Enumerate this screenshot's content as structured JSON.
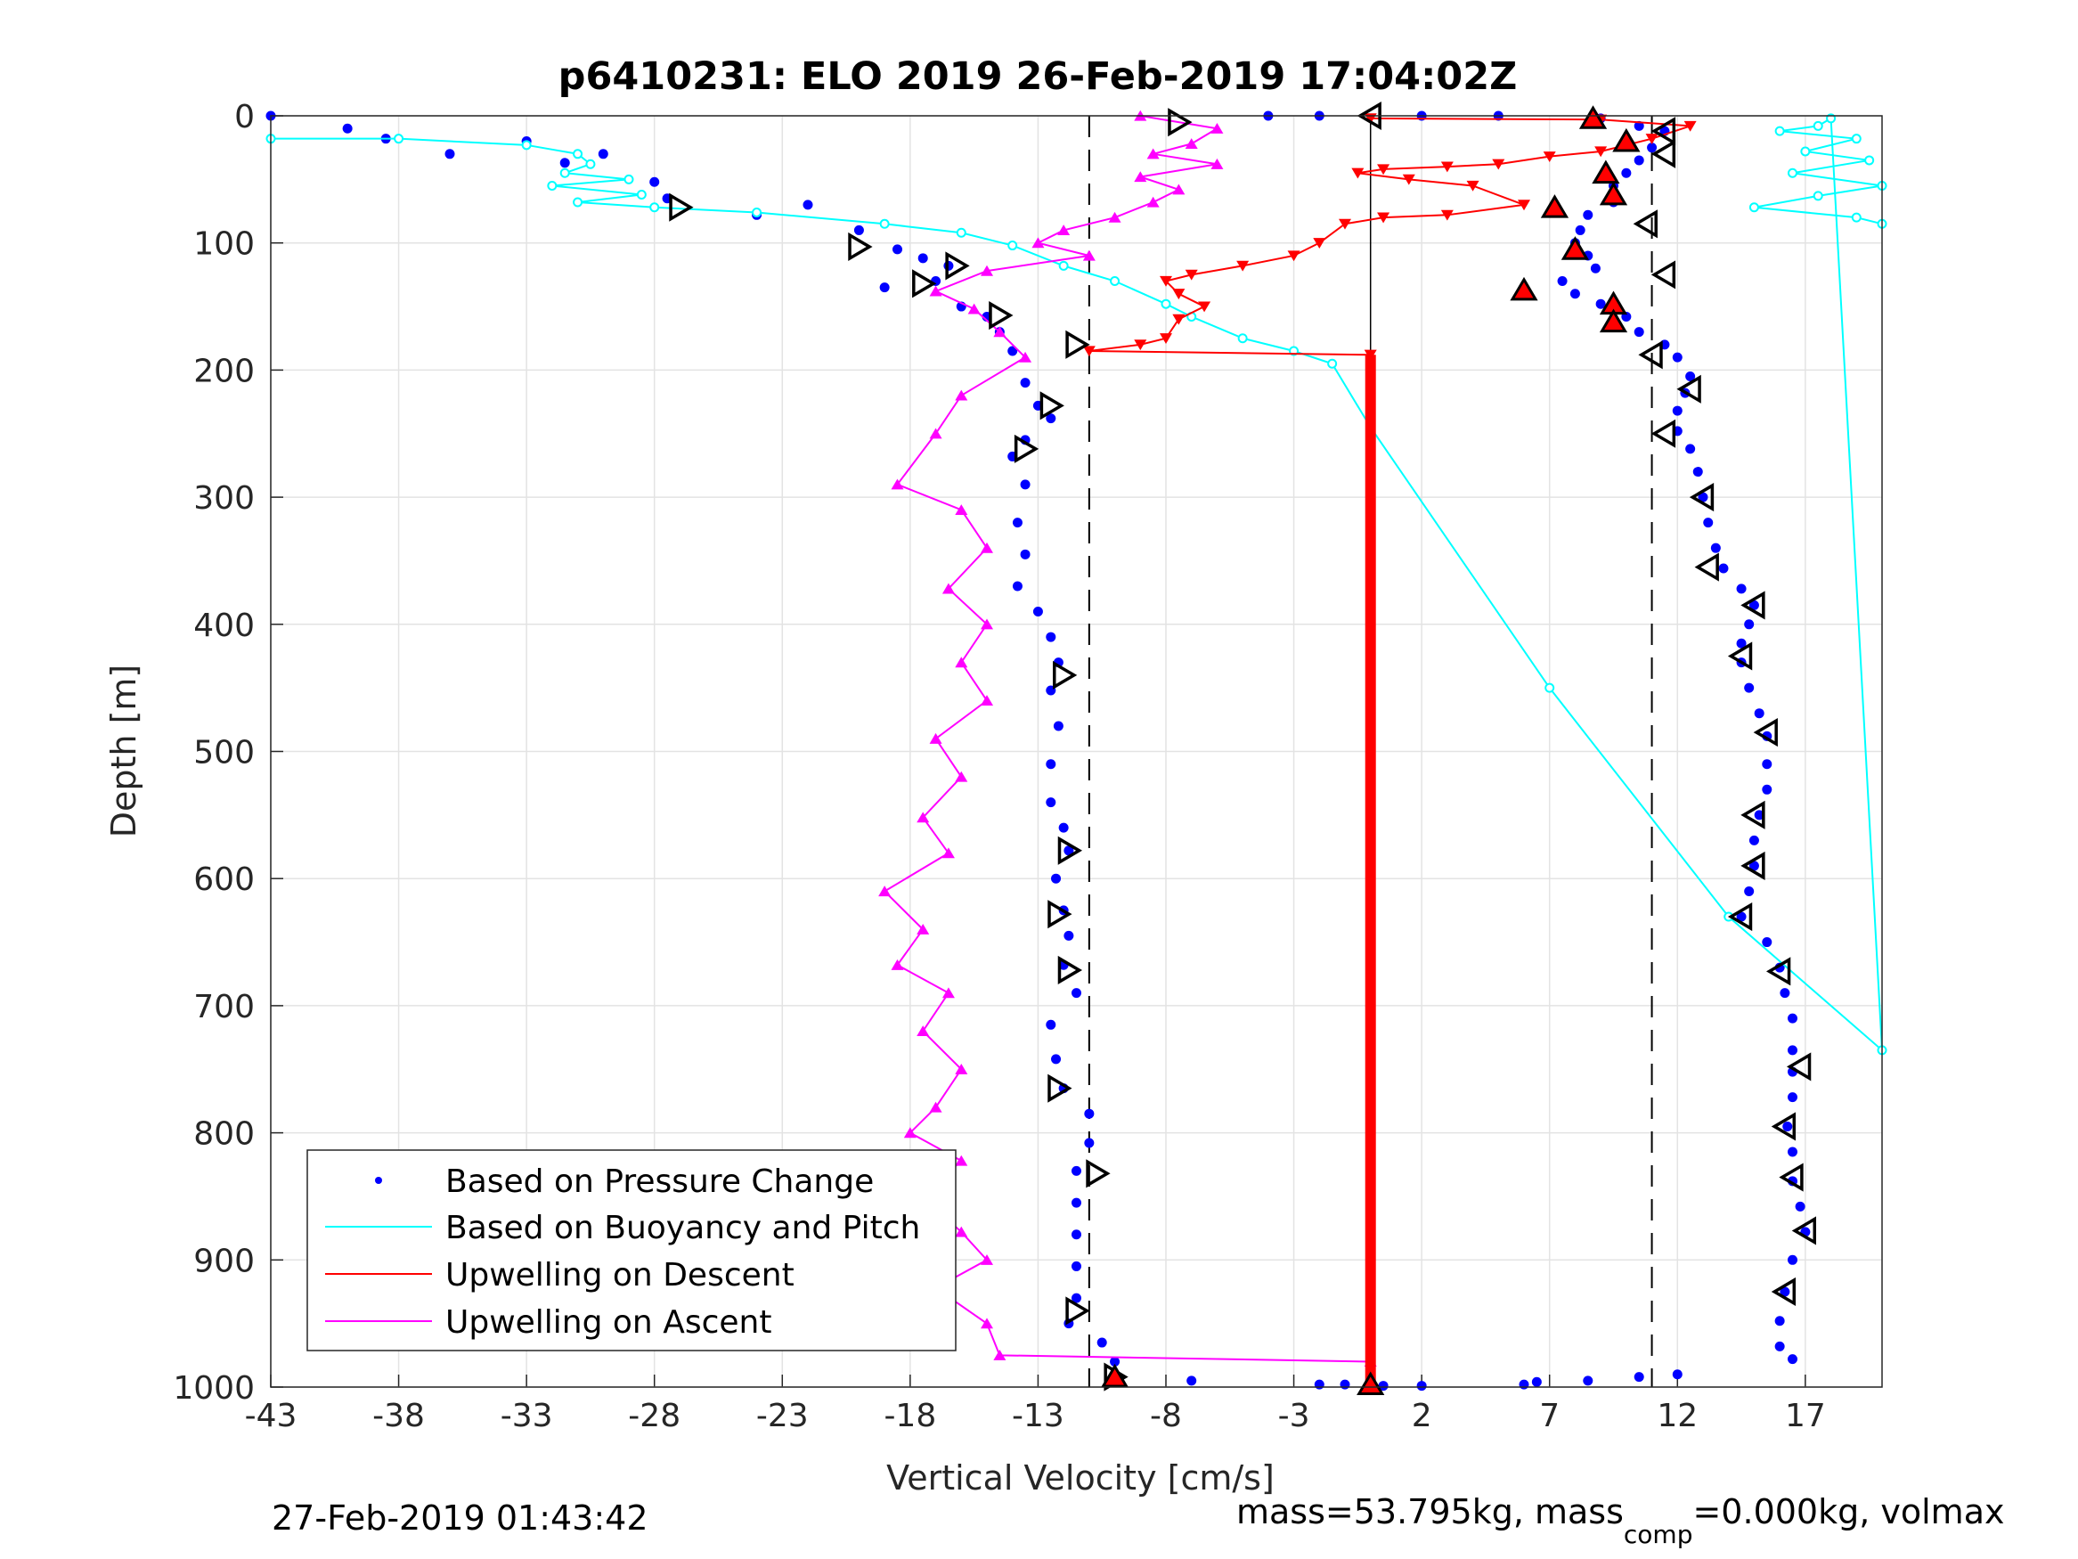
{
  "chart_data": {
    "type": "scatter",
    "title": "p6410231: ELO 2019 26-Feb-2019 17:04:02Z",
    "xlabel": "Vertical Velocity [cm/s]",
    "ylabel": "Depth [m]",
    "xlim": [
      -43,
      20
    ],
    "ylim": [
      0,
      1000
    ],
    "y_reversed": true,
    "xticks": [
      -43,
      -38,
      -33,
      -28,
      -23,
      -18,
      -13,
      -8,
      -3,
      2,
      7,
      12,
      17
    ],
    "yticks": [
      0,
      100,
      200,
      300,
      400,
      500,
      600,
      700,
      800,
      900,
      1000
    ],
    "grid": true,
    "legend_position": "bottom-left",
    "reference_lines": {
      "dashed_x": [
        -11,
        11
      ],
      "solid_x": [
        0
      ]
    },
    "series": [
      {
        "name": "Based on Pressure Change",
        "style": "dots",
        "color": "#0000ff",
        "points": [
          [
            -43,
            0
          ],
          [
            -40,
            10
          ],
          [
            -38.5,
            18
          ],
          [
            -36,
            30
          ],
          [
            -33,
            20
          ],
          [
            -31.5,
            37
          ],
          [
            -30,
            30
          ],
          [
            -28,
            52
          ],
          [
            -27.5,
            65
          ],
          [
            -24,
            78
          ],
          [
            -22,
            70
          ],
          [
            -20,
            90
          ],
          [
            -18.5,
            105
          ],
          [
            -17.5,
            112
          ],
          [
            -19,
            135
          ],
          [
            -17,
            130
          ],
          [
            -16.5,
            118
          ],
          [
            -16,
            150
          ],
          [
            -15,
            158
          ],
          [
            -14.5,
            170
          ],
          [
            -14,
            185
          ],
          [
            -13.5,
            210
          ],
          [
            -13,
            228
          ],
          [
            -12.5,
            238
          ],
          [
            -13.5,
            255
          ],
          [
            -14,
            268
          ],
          [
            -13.5,
            290
          ],
          [
            -13.8,
            320
          ],
          [
            -13.5,
            345
          ],
          [
            -13.8,
            370
          ],
          [
            -13,
            390
          ],
          [
            -12.5,
            410
          ],
          [
            -12.2,
            430
          ],
          [
            -12.5,
            452
          ],
          [
            -12.2,
            480
          ],
          [
            -12.5,
            510
          ],
          [
            -12.5,
            540
          ],
          [
            -12,
            560
          ],
          [
            -11.8,
            578
          ],
          [
            -12.3,
            600
          ],
          [
            -12,
            625
          ],
          [
            -11.8,
            645
          ],
          [
            -12,
            668
          ],
          [
            -11.5,
            690
          ],
          [
            -12.5,
            715
          ],
          [
            -12.3,
            742
          ],
          [
            -12,
            765
          ],
          [
            -11,
            785
          ],
          [
            -11,
            808
          ],
          [
            -11.5,
            830
          ],
          [
            -11.5,
            855
          ],
          [
            -11.5,
            880
          ],
          [
            -11.5,
            905
          ],
          [
            -11.5,
            930
          ],
          [
            -11.8,
            950
          ],
          [
            -10.5,
            965
          ],
          [
            -10,
            980
          ],
          [
            -10,
            992
          ],
          [
            -7,
            995
          ],
          [
            -2,
            998
          ],
          [
            -1,
            998
          ],
          [
            0.5,
            999
          ],
          [
            2,
            999
          ],
          [
            6,
            998
          ],
          [
            6.5,
            996
          ],
          [
            8.5,
            995
          ],
          [
            10.5,
            992
          ],
          [
            12,
            990
          ],
          [
            -4,
            0
          ],
          [
            -2,
            0
          ],
          [
            2,
            0
          ],
          [
            5,
            0
          ],
          [
            9,
            2
          ],
          [
            10.5,
            8
          ],
          [
            11.5,
            12
          ],
          [
            11,
            25
          ],
          [
            10.5,
            35
          ],
          [
            10,
            45
          ],
          [
            9.5,
            55
          ],
          [
            9.5,
            68
          ],
          [
            8.5,
            78
          ],
          [
            8.2,
            90
          ],
          [
            8,
            100
          ],
          [
            8.5,
            110
          ],
          [
            8.8,
            120
          ],
          [
            7.5,
            130
          ],
          [
            8,
            140
          ],
          [
            9,
            148
          ],
          [
            10,
            158
          ],
          [
            10.5,
            170
          ],
          [
            11.5,
            180
          ],
          [
            12,
            190
          ],
          [
            12.5,
            205
          ],
          [
            12.3,
            218
          ],
          [
            12,
            232
          ],
          [
            12,
            248
          ],
          [
            12.5,
            262
          ],
          [
            12.8,
            280
          ],
          [
            13,
            300
          ],
          [
            13.2,
            320
          ],
          [
            13.5,
            340
          ],
          [
            13.8,
            356
          ],
          [
            14.5,
            372
          ],
          [
            15,
            385
          ],
          [
            14.8,
            400
          ],
          [
            14.5,
            415
          ],
          [
            14.5,
            430
          ],
          [
            14.8,
            450
          ],
          [
            15.2,
            470
          ],
          [
            15.5,
            488
          ],
          [
            15.5,
            510
          ],
          [
            15.5,
            530
          ],
          [
            15.2,
            550
          ],
          [
            15,
            570
          ],
          [
            15,
            590
          ],
          [
            14.8,
            610
          ],
          [
            14.5,
            630
          ],
          [
            15.5,
            650
          ],
          [
            16,
            670
          ],
          [
            16.2,
            690
          ],
          [
            16.5,
            710
          ],
          [
            16.5,
            735
          ],
          [
            16.5,
            752
          ],
          [
            16.5,
            772
          ],
          [
            16.3,
            795
          ],
          [
            16.5,
            815
          ],
          [
            16.5,
            838
          ],
          [
            16.8,
            858
          ],
          [
            17,
            878
          ],
          [
            16.5,
            900
          ],
          [
            16.2,
            925
          ],
          [
            16,
            948
          ],
          [
            16,
            968
          ],
          [
            16.5,
            978
          ]
        ]
      },
      {
        "name": "Based on Buoyancy and Pitch",
        "style": "line-circles",
        "color": "#00ffff",
        "points": [
          [
            -43,
            18
          ],
          [
            -38,
            18
          ],
          [
            -33,
            23
          ],
          [
            -31,
            30
          ],
          [
            -30.5,
            38
          ],
          [
            -31.5,
            45
          ],
          [
            -29,
            50
          ],
          [
            -32,
            55
          ],
          [
            -28.5,
            62
          ],
          [
            -31,
            68
          ],
          [
            -28,
            72
          ],
          [
            -24,
            76
          ],
          [
            -19,
            85
          ],
          [
            -16,
            92
          ],
          [
            -14,
            102
          ],
          [
            -12,
            118
          ],
          [
            -10,
            130
          ],
          [
            -8,
            148
          ],
          [
            -7,
            158
          ],
          [
            -5,
            175
          ],
          [
            -3,
            185
          ],
          [
            -1.5,
            195
          ],
          [
            0,
            245
          ],
          [
            7,
            450
          ],
          [
            14,
            630
          ],
          [
            20,
            735
          ],
          [
            18,
            2
          ],
          [
            17.5,
            8
          ],
          [
            16,
            12
          ],
          [
            19,
            18
          ],
          [
            17,
            28
          ],
          [
            19.5,
            35
          ],
          [
            16.5,
            45
          ],
          [
            20,
            55
          ],
          [
            17.5,
            63
          ],
          [
            15,
            72
          ],
          [
            19,
            80
          ],
          [
            20,
            85
          ]
        ]
      },
      {
        "name": "Upwelling on Descent",
        "style": "line-down-triangles",
        "color": "#ff0000",
        "points": [
          [
            0,
            2
          ],
          [
            9,
            3
          ],
          [
            12.5,
            8
          ],
          [
            11,
            18
          ],
          [
            9,
            28
          ],
          [
            7,
            32
          ],
          [
            5,
            38
          ],
          [
            3,
            40
          ],
          [
            0.5,
            42
          ],
          [
            -0.5,
            45
          ],
          [
            1.5,
            50
          ],
          [
            4,
            55
          ],
          [
            6,
            70
          ],
          [
            3,
            78
          ],
          [
            0.5,
            80
          ],
          [
            -1,
            85
          ],
          [
            -2,
            100
          ],
          [
            -3,
            110
          ],
          [
            -5,
            118
          ],
          [
            -7,
            125
          ],
          [
            -8,
            130
          ],
          [
            -7.5,
            140
          ],
          [
            -6.5,
            150
          ],
          [
            -7.5,
            160
          ],
          [
            -8,
            175
          ],
          [
            -9,
            180
          ],
          [
            -11,
            185
          ],
          [
            0,
            188
          ]
        ]
      },
      {
        "name": "Upwelling on Ascent",
        "style": "line-up-triangles",
        "color": "#ff00ff",
        "points": [
          [
            -9,
            0
          ],
          [
            -6,
            10
          ],
          [
            -7,
            22
          ],
          [
            -8.5,
            30
          ],
          [
            -6,
            38
          ],
          [
            -9,
            48
          ],
          [
            -7.5,
            58
          ],
          [
            -8.5,
            68
          ],
          [
            -10,
            80
          ],
          [
            -12,
            90
          ],
          [
            -13,
            100
          ],
          [
            -11,
            110
          ],
          [
            -15,
            122
          ],
          [
            -17,
            138
          ],
          [
            -15.5,
            152
          ],
          [
            -14.5,
            170
          ],
          [
            -13.5,
            190
          ],
          [
            -16,
            220
          ],
          [
            -17,
            250
          ],
          [
            -18.5,
            290
          ],
          [
            -16,
            310
          ],
          [
            -15,
            340
          ],
          [
            -16.5,
            372
          ],
          [
            -15,
            400
          ],
          [
            -16,
            430
          ],
          [
            -15,
            460
          ],
          [
            -17,
            490
          ],
          [
            -16,
            520
          ],
          [
            -17.5,
            552
          ],
          [
            -16.5,
            580
          ],
          [
            -19,
            610
          ],
          [
            -17.5,
            640
          ],
          [
            -18.5,
            668
          ],
          [
            -16.5,
            690
          ],
          [
            -17.5,
            720
          ],
          [
            -16,
            750
          ],
          [
            -17,
            780
          ],
          [
            -18,
            800
          ],
          [
            -16,
            822
          ],
          [
            -17.5,
            850
          ],
          [
            -16,
            878
          ],
          [
            -15,
            900
          ],
          [
            -17,
            922
          ],
          [
            -15,
            950
          ],
          [
            -14.5,
            975
          ],
          [
            0,
            980
          ]
        ]
      },
      {
        "name": "",
        "style": "red-bar",
        "color": "#ff0000",
        "x": 0,
        "depth_range": [
          188,
          998
        ]
      }
    ],
    "markers": {
      "open_triangles": [
        [
          -7.5,
          5
        ],
        [
          0,
          0
        ],
        [
          11.5,
          12
        ],
        [
          -27,
          72
        ],
        [
          -20,
          103
        ],
        [
          -16.2,
          118
        ],
        [
          -17.5,
          132
        ],
        [
          -14.5,
          157
        ],
        [
          -11.5,
          180
        ],
        [
          -12.5,
          228
        ],
        [
          -13.5,
          262
        ],
        [
          11.5,
          30
        ],
        [
          10.8,
          85
        ],
        [
          11.5,
          125
        ],
        [
          11,
          188
        ],
        [
          12.5,
          215
        ],
        [
          11.5,
          250
        ],
        [
          13,
          300
        ],
        [
          13.2,
          355
        ],
        [
          15,
          385
        ],
        [
          14.5,
          425
        ],
        [
          -12,
          440
        ],
        [
          15.5,
          485
        ],
        [
          15,
          550
        ],
        [
          15,
          590
        ],
        [
          14.5,
          630
        ],
        [
          16,
          673
        ],
        [
          -11.8,
          578
        ],
        [
          -12.2,
          628
        ],
        [
          -11.8,
          672
        ],
        [
          16.8,
          748
        ],
        [
          -12.2,
          765
        ],
        [
          16.2,
          795
        ],
        [
          16.5,
          835
        ],
        [
          -10.7,
          832
        ],
        [
          17,
          877
        ],
        [
          16.2,
          925
        ],
        [
          -11.5,
          940
        ],
        [
          -10,
          992
        ]
      ],
      "filled_red_triangles": [
        [
          8.7,
          2
        ],
        [
          10,
          20
        ],
        [
          9.2,
          45
        ],
        [
          9.5,
          62
        ],
        [
          7.2,
          72
        ],
        [
          8,
          105
        ],
        [
          6,
          137
        ],
        [
          9.5,
          148
        ],
        [
          9.5,
          162
        ],
        [
          -10,
          992
        ],
        [
          0,
          998
        ]
      ]
    }
  },
  "footer": {
    "timestamp": "27-Feb-2019 01:43:42",
    "mass_text": "mass=53.795kg, mass",
    "mass_sub": "comp",
    "mass_rest": "=0.000kg, volmax"
  }
}
